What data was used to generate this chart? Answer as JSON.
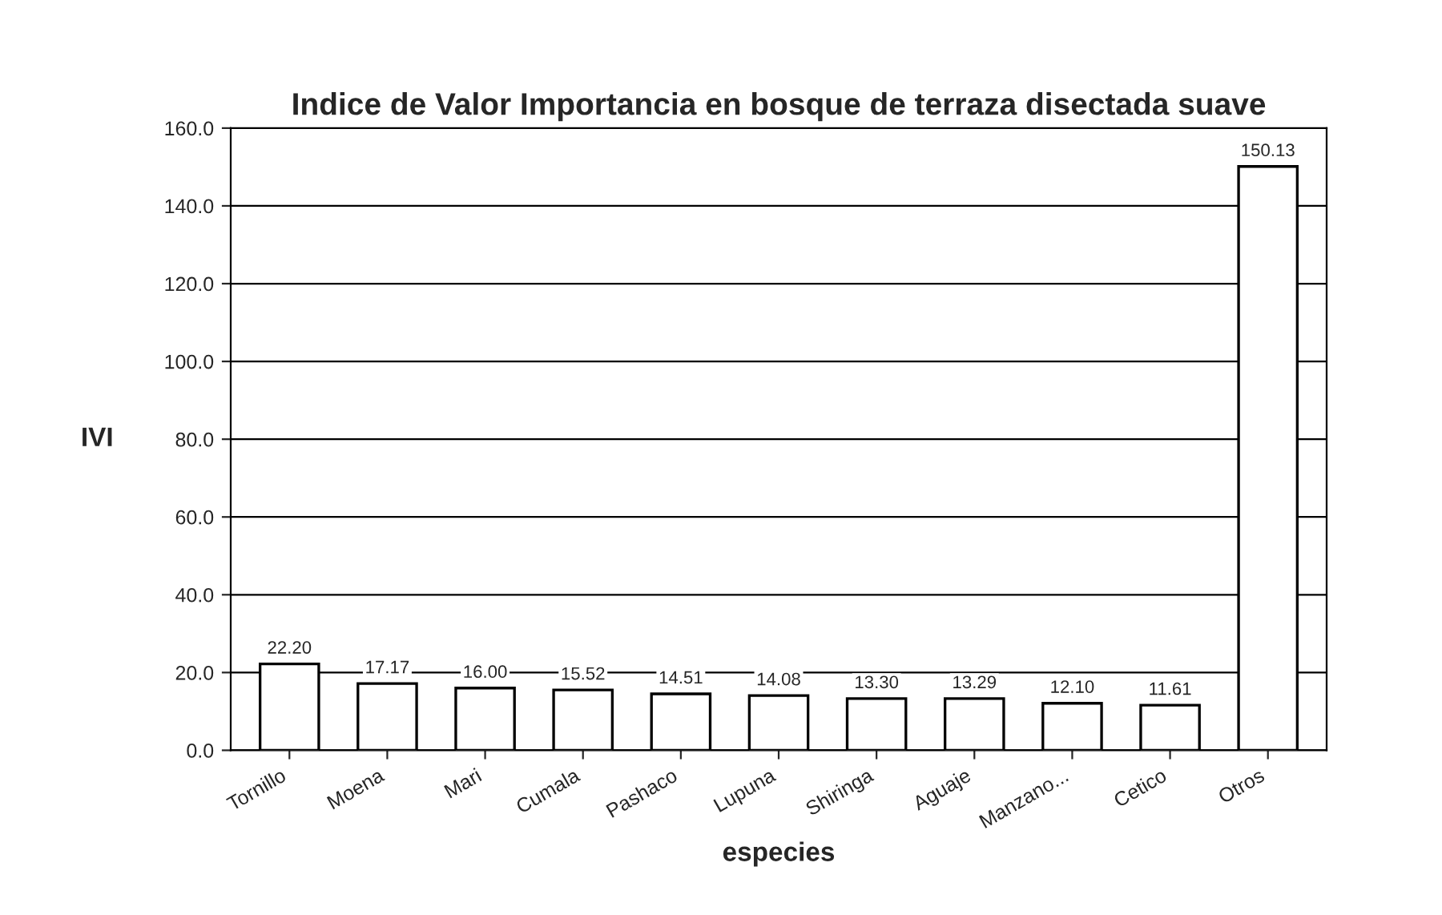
{
  "chart_data": {
    "type": "bar",
    "title": "Indice de Valor Importancia en bosque de terraza disectada suave",
    "xlabel": "especies",
    "ylabel": "IVI",
    "categories": [
      "Tornillo",
      "Moena",
      "Mari",
      "Cumala",
      "Pashaco",
      "Lupuna",
      "Shiringa",
      "Aguaje",
      "Manzano...",
      "Cetico",
      "Otros"
    ],
    "values": [
      22.2,
      17.17,
      16.0,
      15.52,
      14.51,
      14.08,
      13.3,
      13.29,
      12.1,
      11.61,
      150.13
    ],
    "value_labels": [
      "22.20",
      "17.17",
      "16.00",
      "15.52",
      "14.51",
      "14.08",
      "13.30",
      "13.29",
      "12.10",
      "11.61",
      "150.13"
    ],
    "color": "#ffffff",
    "grid": "y",
    "ylim": [
      0,
      160
    ],
    "yticks": [
      {
        "value": 0,
        "label": "0.0"
      },
      {
        "value": 20,
        "label": "20.0"
      },
      {
        "value": 40,
        "label": "40.0"
      },
      {
        "value": 60,
        "label": "60.0"
      },
      {
        "value": 80,
        "label": "80.0"
      },
      {
        "value": 100,
        "label": "100.0"
      },
      {
        "value": 120,
        "label": "120.0"
      },
      {
        "value": 140,
        "label": "140.0"
      },
      {
        "value": 160,
        "label": "160.0"
      }
    ]
  }
}
